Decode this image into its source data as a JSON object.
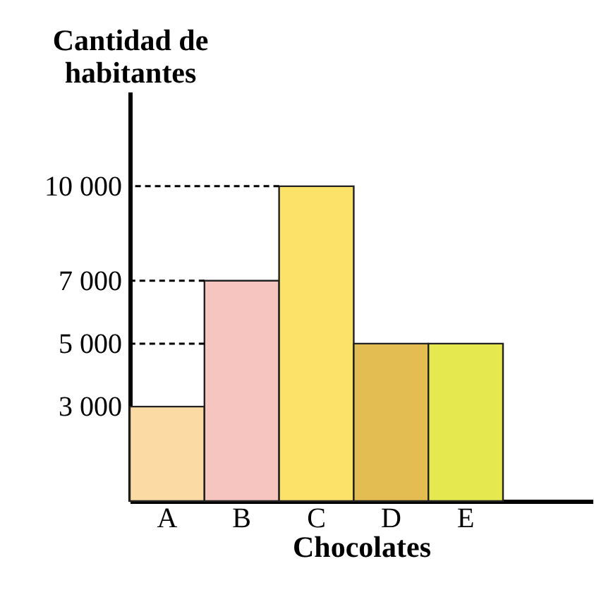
{
  "chart_data": {
    "type": "bar",
    "xlabel": "Chocolates",
    "ylabel": "Cantidad de habitantes",
    "categories": [
      "A",
      "B",
      "C",
      "D",
      "E"
    ],
    "values": [
      3000,
      7000,
      10000,
      5000,
      5000
    ],
    "colors": [
      "#fbdba3",
      "#f7c5c0",
      "#fde26a",
      "#e3bd52",
      "#e6e84f"
    ],
    "ylim": [
      0,
      13000
    ],
    "yticks": [
      {
        "value": 3000,
        "label": "3 000"
      },
      {
        "value": 5000,
        "label": "5 000"
      },
      {
        "value": 7000,
        "label": "7 000"
      },
      {
        "value": 10000,
        "label": "10 000"
      }
    ],
    "ref_lines": [
      {
        "axis": "y",
        "value": 10000,
        "line_style": "dashed",
        "color": "#000000"
      },
      {
        "axis": "y",
        "value": 7000,
        "line_style": "dashed",
        "color": "#000000"
      },
      {
        "axis": "y",
        "value": 5000,
        "line_style": "dashed",
        "color": "#000000"
      }
    ],
    "grid": false,
    "legend": false
  }
}
